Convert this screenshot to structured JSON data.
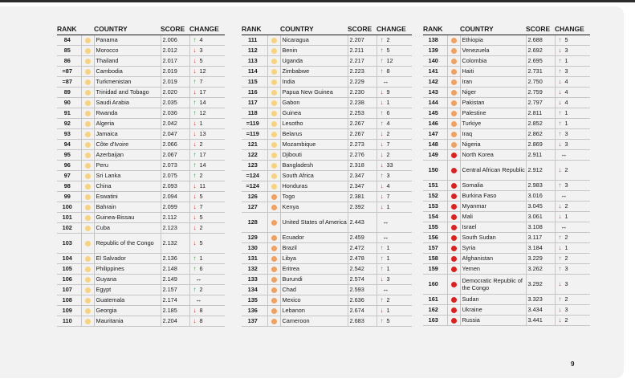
{
  "headers": {
    "rank": "RANK",
    "country": "COUNTRY",
    "score": "SCORE",
    "change": "CHANGE"
  },
  "colors": {
    "yellow": "#f6d37e",
    "orange": "#f0a060",
    "red": "#e02020",
    "up": "#2e9a4a",
    "down": "#d62b2b"
  },
  "page_number": "9",
  "columns": [
    [
      {
        "rank": "84",
        "country": "Panama",
        "score": "2.006",
        "dir": "up",
        "change": "4",
        "level": "yellow"
      },
      {
        "rank": "85",
        "country": "Morocco",
        "score": "2.012",
        "dir": "down",
        "change": "3",
        "level": "yellow"
      },
      {
        "rank": "86",
        "country": "Thailand",
        "score": "2.017",
        "dir": "down",
        "change": "5",
        "level": "yellow"
      },
      {
        "rank": "=87",
        "country": "Cambodia",
        "score": "2.019",
        "dir": "down",
        "change": "12",
        "level": "yellow"
      },
      {
        "rank": "=87",
        "country": "Turkmenistan",
        "score": "2.019",
        "dir": "up",
        "change": "7",
        "level": "yellow"
      },
      {
        "rank": "89",
        "country": "Trinidad and Tobago",
        "score": "2.020",
        "dir": "down",
        "change": "17",
        "level": "yellow"
      },
      {
        "rank": "90",
        "country": "Saudi Arabia",
        "score": "2.035",
        "dir": "up",
        "change": "14",
        "level": "yellow"
      },
      {
        "rank": "91",
        "country": "Rwanda",
        "score": "2.036",
        "dir": "up",
        "change": "12",
        "level": "yellow"
      },
      {
        "rank": "92",
        "country": "Algeria",
        "score": "2.042",
        "dir": "down",
        "change": "1",
        "level": "yellow"
      },
      {
        "rank": "93",
        "country": "Jamaica",
        "score": "2.047",
        "dir": "down",
        "change": "13",
        "level": "yellow"
      },
      {
        "rank": "94",
        "country": "Côte d'Ivoire",
        "score": "2.066",
        "dir": "down",
        "change": "2",
        "level": "yellow"
      },
      {
        "rank": "95",
        "country": "Azerbaijan",
        "score": "2.067",
        "dir": "up",
        "change": "17",
        "level": "yellow"
      },
      {
        "rank": "96",
        "country": "Peru",
        "score": "2.073",
        "dir": "up",
        "change": "14",
        "level": "yellow"
      },
      {
        "rank": "97",
        "country": "Sri Lanka",
        "score": "2.075",
        "dir": "up",
        "change": "2",
        "level": "yellow"
      },
      {
        "rank": "98",
        "country": "China",
        "score": "2.093",
        "dir": "down",
        "change": "11",
        "level": "yellow"
      },
      {
        "rank": "99",
        "country": "Eswatini",
        "score": "2.094",
        "dir": "down",
        "change": "5",
        "level": "yellow"
      },
      {
        "rank": "100",
        "country": "Bahrain",
        "score": "2.099",
        "dir": "down",
        "change": "7",
        "level": "yellow"
      },
      {
        "rank": "101",
        "country": "Guinea-Bissau",
        "score": "2.112",
        "dir": "down",
        "change": "5",
        "level": "yellow"
      },
      {
        "rank": "102",
        "country": "Cuba",
        "score": "2.123",
        "dir": "down",
        "change": "2",
        "level": "yellow"
      },
      {
        "rank": "103",
        "country": "Republic of the Congo",
        "score": "2.132",
        "dir": "down",
        "change": "5",
        "level": "yellow",
        "tall": true
      },
      {
        "rank": "104",
        "country": "El Salvador",
        "score": "2.136",
        "dir": "up",
        "change": "1",
        "level": "yellow"
      },
      {
        "rank": "105",
        "country": "Philippines",
        "score": "2.148",
        "dir": "up",
        "change": "6",
        "level": "yellow"
      },
      {
        "rank": "106",
        "country": "Guyana",
        "score": "2.149",
        "dir": "flat",
        "change": "",
        "level": "yellow"
      },
      {
        "rank": "107",
        "country": "Egypt",
        "score": "2.157",
        "dir": "up",
        "change": "2",
        "level": "yellow"
      },
      {
        "rank": "108",
        "country": "Guatemala",
        "score": "2.174",
        "dir": "flat",
        "change": "",
        "level": "yellow"
      },
      {
        "rank": "109",
        "country": "Georgia",
        "score": "2.185",
        "dir": "down",
        "change": "8",
        "level": "yellow"
      },
      {
        "rank": "110",
        "country": "Mauritania",
        "score": "2.204",
        "dir": "down",
        "change": "8",
        "level": "yellow"
      }
    ],
    [
      {
        "rank": "111",
        "country": "Nicaragua",
        "score": "2.207",
        "dir": "up",
        "change": "2",
        "level": "yellow"
      },
      {
        "rank": "112",
        "country": "Benin",
        "score": "2.211",
        "dir": "up",
        "change": "5",
        "level": "yellow"
      },
      {
        "rank": "113",
        "country": "Uganda",
        "score": "2.217",
        "dir": "up",
        "change": "12",
        "level": "yellow"
      },
      {
        "rank": "114",
        "country": "Zimbabwe",
        "score": "2.223",
        "dir": "up",
        "change": "8",
        "level": "yellow"
      },
      {
        "rank": "115",
        "country": "India",
        "score": "2.229",
        "dir": "flat",
        "change": "",
        "level": "yellow"
      },
      {
        "rank": "116",
        "country": "Papua New Guinea",
        "score": "2.230",
        "dir": "down",
        "change": "9",
        "level": "yellow"
      },
      {
        "rank": "117",
        "country": "Gabon",
        "score": "2.238",
        "dir": "down",
        "change": "1",
        "level": "yellow"
      },
      {
        "rank": "118",
        "country": "Guinea",
        "score": "2.253",
        "dir": "up",
        "change": "6",
        "level": "yellow"
      },
      {
        "rank": "=119",
        "country": "Lesotho",
        "score": "2.267",
        "dir": "up",
        "change": "4",
        "level": "yellow"
      },
      {
        "rank": "=119",
        "country": "Belarus",
        "score": "2.267",
        "dir": "down",
        "change": "2",
        "level": "yellow"
      },
      {
        "rank": "121",
        "country": "Mozambique",
        "score": "2.273",
        "dir": "down",
        "change": "7",
        "level": "yellow"
      },
      {
        "rank": "122",
        "country": "Djibouti",
        "score": "2.276",
        "dir": "down",
        "change": "2",
        "level": "yellow"
      },
      {
        "rank": "123",
        "country": "Bangladesh",
        "score": "2.318",
        "dir": "down",
        "change": "33",
        "level": "yellow"
      },
      {
        "rank": "=124",
        "country": "South Africa",
        "score": "2.347",
        "dir": "up",
        "change": "3",
        "level": "yellow"
      },
      {
        "rank": "=124",
        "country": "Honduras",
        "score": "2.347",
        "dir": "down",
        "change": "4",
        "level": "yellow"
      },
      {
        "rank": "126",
        "country": "Togo",
        "score": "2.381",
        "dir": "down",
        "change": "7",
        "level": "orange"
      },
      {
        "rank": "127",
        "country": "Kenya",
        "score": "2.392",
        "dir": "down",
        "change": "1",
        "level": "orange"
      },
      {
        "rank": "128",
        "country": "United States of America",
        "score": "2.443",
        "dir": "flat",
        "change": "",
        "level": "orange",
        "tall": true
      },
      {
        "rank": "129",
        "country": "Ecuador",
        "score": "2.459",
        "dir": "flat",
        "change": "",
        "level": "orange"
      },
      {
        "rank": "130",
        "country": "Brazil",
        "score": "2.472",
        "dir": "up",
        "change": "1",
        "level": "orange"
      },
      {
        "rank": "131",
        "country": "Libya",
        "score": "2.478",
        "dir": "up",
        "change": "1",
        "level": "orange"
      },
      {
        "rank": "132",
        "country": "Eritrea",
        "score": "2.542",
        "dir": "up",
        "change": "1",
        "level": "orange"
      },
      {
        "rank": "133",
        "country": "Burundi",
        "score": "2.574",
        "dir": "down",
        "change": "3",
        "level": "orange"
      },
      {
        "rank": "134",
        "country": "Chad",
        "score": "2.593",
        "dir": "flat",
        "change": "",
        "level": "orange"
      },
      {
        "rank": "135",
        "country": "Mexico",
        "score": "2.636",
        "dir": "up",
        "change": "2",
        "level": "orange"
      },
      {
        "rank": "136",
        "country": "Lebanon",
        "score": "2.674",
        "dir": "down",
        "change": "1",
        "level": "orange"
      },
      {
        "rank": "137",
        "country": "Cameroon",
        "score": "2.683",
        "dir": "up",
        "change": "5",
        "level": "orange"
      }
    ],
    [
      {
        "rank": "138",
        "country": "Ethiopia",
        "score": "2.688",
        "dir": "up",
        "change": "5",
        "level": "orange"
      },
      {
        "rank": "139",
        "country": "Venezuela",
        "score": "2.692",
        "dir": "down",
        "change": "3",
        "level": "orange"
      },
      {
        "rank": "140",
        "country": "Colombia",
        "score": "2.695",
        "dir": "up",
        "change": "1",
        "level": "orange"
      },
      {
        "rank": "141",
        "country": "Haiti",
        "score": "2.731",
        "dir": "up",
        "change": "3",
        "level": "orange"
      },
      {
        "rank": "142",
        "country": "Iran",
        "score": "2.750",
        "dir": "down",
        "change": "4",
        "level": "orange"
      },
      {
        "rank": "143",
        "country": "Niger",
        "score": "2.759",
        "dir": "down",
        "change": "4",
        "level": "orange"
      },
      {
        "rank": "144",
        "country": "Pakistan",
        "score": "2.797",
        "dir": "down",
        "change": "4",
        "level": "orange"
      },
      {
        "rank": "145",
        "country": "Palestine",
        "score": "2.811",
        "dir": "up",
        "change": "1",
        "level": "orange"
      },
      {
        "rank": "146",
        "country": "Turkiye",
        "score": "2.852",
        "dir": "up",
        "change": "1",
        "level": "orange"
      },
      {
        "rank": "147",
        "country": "Iraq",
        "score": "2.862",
        "dir": "up",
        "change": "3",
        "level": "orange"
      },
      {
        "rank": "148",
        "country": "Nigeria",
        "score": "2.869",
        "dir": "down",
        "change": "3",
        "level": "orange"
      },
      {
        "rank": "149",
        "country": "North Korea",
        "score": "2.911",
        "dir": "flat",
        "change": "",
        "level": "red"
      },
      {
        "rank": "150",
        "country": "Central African Republic",
        "score": "2.912",
        "dir": "down",
        "change": "2",
        "level": "red",
        "tall": true
      },
      {
        "rank": "151",
        "country": "Somalia",
        "score": "2.983",
        "dir": "up",
        "change": "3",
        "level": "red"
      },
      {
        "rank": "152",
        "country": "Burkina Faso",
        "score": "3.016",
        "dir": "flat",
        "change": "",
        "level": "red"
      },
      {
        "rank": "153",
        "country": "Myanmar",
        "score": "3.045",
        "dir": "down",
        "change": "2",
        "level": "red"
      },
      {
        "rank": "154",
        "country": "Mali",
        "score": "3.061",
        "dir": "down",
        "change": "1",
        "level": "red"
      },
      {
        "rank": "155",
        "country": "Israel",
        "score": "3.108",
        "dir": "flat",
        "change": "",
        "level": "red"
      },
      {
        "rank": "156",
        "country": "South Sudan",
        "score": "3.117",
        "dir": "up",
        "change": "2",
        "level": "red"
      },
      {
        "rank": "157",
        "country": "Syria",
        "score": "3.184",
        "dir": "down",
        "change": "1",
        "level": "red"
      },
      {
        "rank": "158",
        "country": "Afghanistan",
        "score": "3.229",
        "dir": "up",
        "change": "2",
        "level": "red"
      },
      {
        "rank": "159",
        "country": "Yemen",
        "score": "3.262",
        "dir": "up",
        "change": "3",
        "level": "red"
      },
      {
        "rank": "160",
        "country": "Democratic Republic of the Congo",
        "score": "3.292",
        "dir": "down",
        "change": "3",
        "level": "red",
        "tall": true
      },
      {
        "rank": "161",
        "country": "Sudan",
        "score": "3.323",
        "dir": "up",
        "change": "2",
        "level": "red"
      },
      {
        "rank": "162",
        "country": "Ukraine",
        "score": "3.434",
        "dir": "down",
        "change": "3",
        "level": "red"
      },
      {
        "rank": "163",
        "country": "Russia",
        "score": "3.441",
        "dir": "down",
        "change": "2",
        "level": "red"
      }
    ]
  ]
}
